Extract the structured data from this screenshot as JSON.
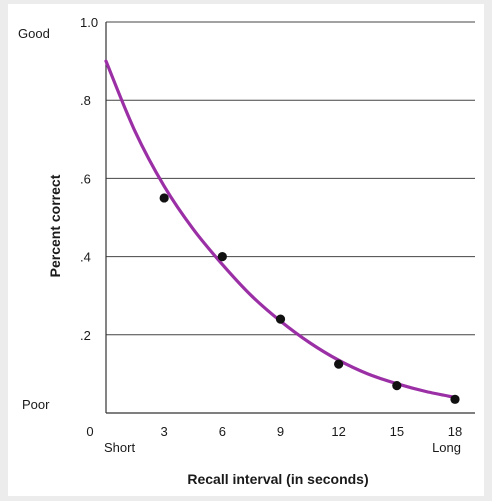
{
  "chart_data": {
    "type": "line",
    "title": "",
    "xlabel": "Recall interval (in seconds)",
    "ylabel": "Percent correct",
    "xlim": [
      0,
      18
    ],
    "ylim": [
      0,
      1.0
    ],
    "x_ticks": [
      {
        "value": 0,
        "label": "0"
      },
      {
        "value": 3,
        "label": "3"
      },
      {
        "value": 6,
        "label": "6"
      },
      {
        "value": 9,
        "label": "9"
      },
      {
        "value": 12,
        "label": "12"
      },
      {
        "value": 15,
        "label": "15"
      },
      {
        "value": 18,
        "label": "18"
      }
    ],
    "y_ticks": [
      {
        "value": 1.0,
        "label": "1.0"
      },
      {
        "value": 0.8,
        "label": ".8"
      },
      {
        "value": 0.6,
        "label": ".6"
      },
      {
        "value": 0.4,
        "label": ".4"
      },
      {
        "value": 0.2,
        "label": ".2"
      }
    ],
    "y_end_labels": {
      "top": "Good",
      "bottom": "Poor"
    },
    "x_end_labels": {
      "left": "Short",
      "right": "Long"
    },
    "grid": "horizontal",
    "series": [
      {
        "marker": "point",
        "color": "#111111",
        "x": [
          3,
          6,
          9,
          12,
          15,
          18
        ],
        "y": [
          0.55,
          0.4,
          0.24,
          0.125,
          0.07,
          0.035
        ]
      },
      {
        "marker": "curve",
        "color": "#9b2fa5",
        "x": [
          0,
          1.5,
          3,
          4.5,
          6,
          7.5,
          9,
          10.5,
          12,
          13.5,
          15,
          16.5,
          18
        ],
        "y": [
          0.9,
          0.72,
          0.58,
          0.47,
          0.38,
          0.3,
          0.235,
          0.18,
          0.135,
          0.1,
          0.075,
          0.055,
          0.04
        ]
      }
    ]
  }
}
